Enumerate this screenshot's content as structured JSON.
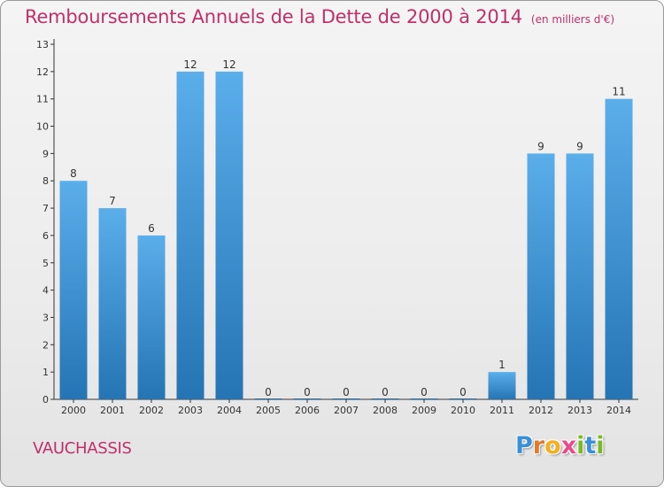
{
  "title": "Remboursements Annuels de la Dette de 2000 à 2014",
  "unit": "(en milliers d'€)",
  "commune": "VAUCHASSIS",
  "logo": {
    "letters": [
      "P",
      "r",
      "o",
      "x",
      "i",
      "t",
      "i"
    ],
    "colors": [
      "#3a8fd8",
      "#e07a2c",
      "#f2b01e",
      "#e84a8c",
      "#7ab828",
      "#3a8fd8",
      "#7ab828"
    ]
  },
  "colors": {
    "bar_light": "#5aaeea",
    "bar_dark": "#2574b4",
    "title": "#c0306a",
    "axis": "#333333"
  },
  "chart_data": {
    "type": "bar",
    "categories": [
      "2000",
      "2001",
      "2002",
      "2003",
      "2004",
      "2005",
      "2006",
      "2007",
      "2008",
      "2009",
      "2010",
      "2011",
      "2012",
      "2013",
      "2014"
    ],
    "values": [
      8,
      7,
      6,
      12,
      12,
      0,
      0,
      0,
      0,
      0,
      0,
      1,
      9,
      9,
      11
    ],
    "data_labels": [
      "8",
      "7",
      "6",
      "12",
      "12",
      "0",
      "0",
      "0",
      "0",
      "0",
      "0",
      "1",
      "9",
      "9",
      "11"
    ],
    "yticks": [
      0,
      1,
      2,
      3,
      4,
      5,
      6,
      7,
      8,
      9,
      10,
      11,
      12,
      13
    ],
    "ylim": [
      0,
      13
    ],
    "grid": false,
    "legend": "none"
  }
}
